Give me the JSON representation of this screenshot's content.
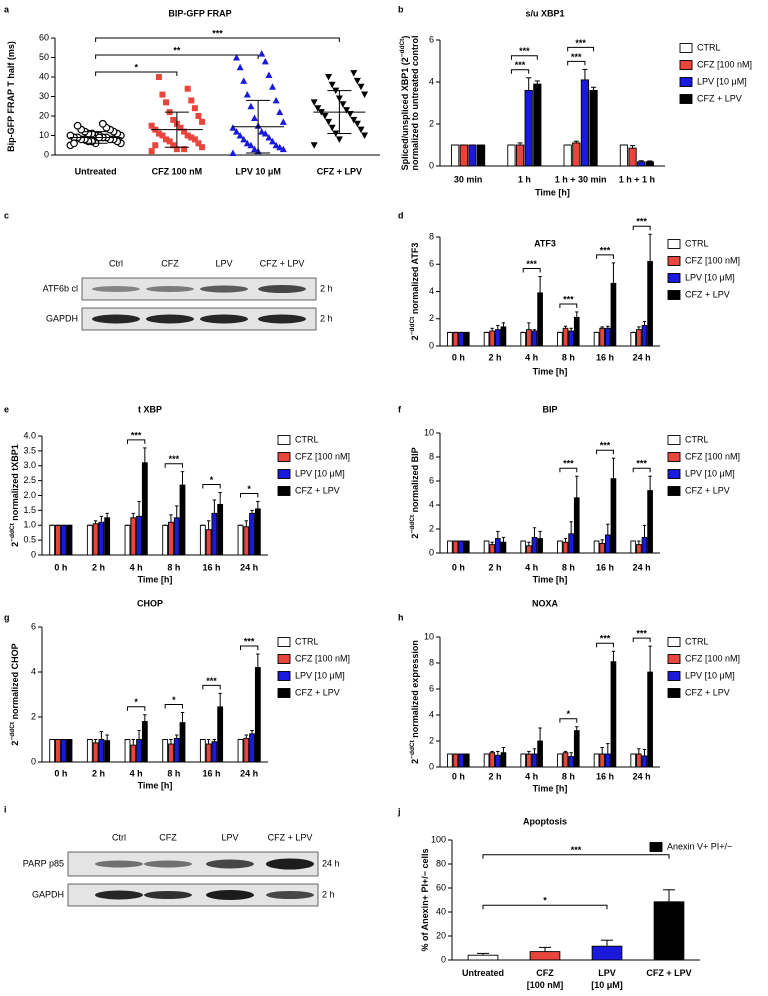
{
  "chart_data": [
    {
      "panel": "a",
      "type": "dotplot",
      "title": "BIP-GFP FRAP",
      "ylabel": [
        [
          "Bip-GFP FRAP T half (ms)"
        ]
      ],
      "categories": [
        "Untreated",
        "CFZ 100 nM",
        "LPV 10 μM",
        "CFZ + LPV"
      ],
      "ylim": [
        0,
        60
      ],
      "yticks": [
        0,
        10,
        20,
        30,
        40,
        50,
        60
      ],
      "groups": [
        {
          "color": "#000000",
          "marker": "circle",
          "mean": 9,
          "sd": 3,
          "values": [
            5,
            6,
            6,
            7,
            7,
            7,
            8,
            8,
            8,
            8,
            9,
            9,
            9,
            9,
            10,
            10,
            10,
            10,
            11,
            11,
            11,
            12,
            12,
            13,
            13,
            14,
            15,
            16,
            6,
            9
          ]
        },
        {
          "color": "#e8453c",
          "marker": "square",
          "mean": 13,
          "sd": 9,
          "values": [
            2,
            3,
            4,
            5,
            6,
            7,
            8,
            8,
            9,
            10,
            10,
            11,
            12,
            13,
            14,
            15,
            16,
            17,
            18,
            20,
            22,
            24,
            27,
            28,
            31,
            34,
            40,
            3,
            5
          ]
        },
        {
          "color": "#1a1adc",
          "marker": "triangle",
          "mean": 14.5,
          "sd": 13.5,
          "values": [
            1,
            2,
            3,
            3,
            4,
            5,
            5,
            6,
            7,
            8,
            9,
            10,
            11,
            12,
            12,
            14,
            15,
            17,
            19,
            22,
            25,
            28,
            31,
            35,
            38,
            41,
            45,
            48,
            50,
            52
          ]
        },
        {
          "color": "#000000",
          "marker": "triangle-down",
          "mean": 22,
          "sd": 11,
          "values": [
            5,
            8,
            10,
            11,
            13,
            14,
            16,
            17,
            18,
            20,
            21,
            22,
            23,
            24,
            26,
            27,
            29,
            31,
            33,
            35,
            36,
            38,
            40,
            42
          ]
        }
      ],
      "significance": [
        {
          "from": 0,
          "to": 1,
          "label": "*"
        },
        {
          "from": 0,
          "to": 2,
          "label": "**"
        },
        {
          "from": 0,
          "to": 3,
          "label": "***"
        }
      ]
    },
    {
      "panel": "b",
      "type": "bar",
      "title": "s/u XBP1",
      "xlabel": "Time [h]",
      "ylabel": [
        [
          "Spliced/unspliced XBP1 (2",
          "−ddCt",
          ")"
        ],
        [
          "normalized to untreated control"
        ]
      ],
      "categories": [
        "30 min",
        "1 h",
        "1 h + 30 min",
        "1 h + 1 h"
      ],
      "ylim": [
        0,
        6
      ],
      "yticks": [
        0,
        2,
        4,
        6
      ],
      "series": [
        {
          "name": "CTRL",
          "color": "#ffffff",
          "values": [
            1,
            1,
            1,
            1
          ],
          "errors": [
            0,
            0,
            0,
            0
          ]
        },
        {
          "name": "CFZ [100 nM]",
          "color": "#e8453c",
          "values": [
            1,
            1,
            1.1,
            0.85
          ],
          "errors": [
            0,
            0.1,
            0.08,
            0.12
          ]
        },
        {
          "name": "LPV [10 μM]",
          "color": "#1a1adc",
          "values": [
            1,
            3.6,
            4.1,
            0.2
          ],
          "errors": [
            0,
            0.6,
            0.5,
            0.05
          ]
        },
        {
          "name": "CFZ + LPV",
          "color": "#000000",
          "values": [
            1,
            3.9,
            3.6,
            0.2
          ],
          "errors": [
            0,
            0.15,
            0.15,
            0.04
          ]
        }
      ],
      "significance": [
        {
          "category": 1,
          "from": 0,
          "to": 2,
          "label": "***"
        },
        {
          "category": 1,
          "from": 0,
          "to": 3,
          "label": "***"
        },
        {
          "category": 2,
          "from": 0,
          "to": 2,
          "label": "***"
        },
        {
          "category": 2,
          "from": 0,
          "to": 3,
          "label": "***"
        }
      ]
    },
    {
      "panel": "d",
      "type": "bar",
      "title": "ATF3",
      "xlabel": "Time [h]",
      "ylabel": [
        [
          "2",
          "−ddCt",
          " normalized ATF3"
        ]
      ],
      "categories": [
        "0 h",
        "2 h",
        "4 h",
        "8 h",
        "16 h",
        "24 h"
      ],
      "ylim": [
        0,
        8
      ],
      "yticks": [
        0,
        2,
        4,
        6,
        8
      ],
      "series": [
        {
          "name": "CTRL",
          "color": "#ffffff",
          "values": [
            1,
            1,
            1,
            1,
            1,
            1
          ],
          "errors": [
            0,
            0,
            0,
            0,
            0,
            0
          ]
        },
        {
          "name": "CFZ [100 nM]",
          "color": "#e8453c",
          "values": [
            1,
            1.1,
            1.2,
            1.3,
            1.3,
            1.2
          ],
          "errors": [
            0,
            0.2,
            0.5,
            0.15,
            0.1,
            0.2
          ]
        },
        {
          "name": "LPV [10 μM]",
          "color": "#1a1adc",
          "values": [
            1,
            1.2,
            1.1,
            1.1,
            1.3,
            1.5
          ],
          "errors": [
            0,
            0.3,
            0.1,
            0.2,
            0.15,
            0.3
          ]
        },
        {
          "name": "CFZ + LPV",
          "color": "#000000",
          "values": [
            1,
            1.4,
            3.9,
            2.1,
            4.6,
            6.2
          ],
          "errors": [
            0,
            0.3,
            1.2,
            0.4,
            1.5,
            2.0
          ]
        }
      ],
      "significance": [
        {
          "category": 2,
          "from": 0,
          "to": 3,
          "label": "***"
        },
        {
          "category": 3,
          "from": 0,
          "to": 3,
          "label": "***"
        },
        {
          "category": 4,
          "from": 0,
          "to": 3,
          "label": "***"
        },
        {
          "category": 5,
          "from": 0,
          "to": 3,
          "label": "***"
        }
      ]
    },
    {
      "panel": "e",
      "type": "bar",
      "title": "t XBP",
      "xlabel": "Time [h]",
      "ylabel": [
        [
          "2",
          "−ddCt",
          " normalized tXBP1"
        ]
      ],
      "categories": [
        "0 h",
        "2 h",
        "4 h",
        "8 h",
        "16 h",
        "24 h"
      ],
      "ylim": [
        0,
        4
      ],
      "yticks": [
        0,
        0.5,
        {
          "value": 1,
          "label": "1.0"
        },
        1.5,
        {
          "value": 2,
          "label": "2.0"
        },
        2.5,
        {
          "value": 3,
          "label": "3.0"
        },
        3.5,
        {
          "value": 4,
          "label": "4.0"
        }
      ],
      "series": [
        {
          "name": "CTRL",
          "color": "#ffffff",
          "values": [
            1,
            1,
            1,
            1,
            1,
            1
          ],
          "errors": [
            0,
            0,
            0,
            0,
            0,
            0
          ]
        },
        {
          "name": "CFZ [100 nM]",
          "color": "#e8453c",
          "values": [
            1,
            1.05,
            1.25,
            1.1,
            0.85,
            0.95
          ],
          "errors": [
            0,
            0.1,
            0.15,
            0.25,
            0.3,
            0.2
          ]
        },
        {
          "name": "LPV [10 μM]",
          "color": "#1a1adc",
          "values": [
            1,
            1.1,
            1.3,
            1.25,
            1.4,
            1.4
          ],
          "errors": [
            0,
            0.2,
            0.5,
            0.4,
            0.45,
            0.1
          ]
        },
        {
          "name": "CFZ + LPV",
          "color": "#000000",
          "values": [
            1,
            1.25,
            3.1,
            2.35,
            1.7,
            1.55
          ],
          "errors": [
            0,
            0.15,
            0.5,
            0.45,
            0.4,
            0.25
          ]
        }
      ],
      "significance": [
        {
          "category": 2,
          "from": 0,
          "to": 3,
          "label": "***"
        },
        {
          "category": 3,
          "from": 0,
          "to": 3,
          "label": "***"
        },
        {
          "category": 4,
          "from": 0,
          "to": 3,
          "label": "*"
        },
        {
          "category": 5,
          "from": 0,
          "to": 3,
          "label": "*"
        }
      ]
    },
    {
      "panel": "f",
      "type": "bar",
      "title": "BIP",
      "xlabel": "Time [h]",
      "ylabel": [
        [
          "2",
          "−ddCt",
          " normalized BIP"
        ]
      ],
      "categories": [
        "0 h",
        "2 h",
        "4 h",
        "8 h",
        "16 h",
        "24 h"
      ],
      "ylim": [
        0,
        10
      ],
      "yticks": [
        0,
        2,
        4,
        6,
        8,
        10
      ],
      "series": [
        {
          "name": "CTRL",
          "color": "#ffffff",
          "values": [
            1,
            1,
            1,
            1,
            1,
            1
          ],
          "errors": [
            0,
            0,
            0,
            0,
            0,
            0
          ]
        },
        {
          "name": "CFZ [100 nM]",
          "color": "#e8453c",
          "values": [
            1,
            0.7,
            0.6,
            0.9,
            0.8,
            0.7
          ],
          "errors": [
            0,
            0.2,
            0.3,
            0.3,
            0.3,
            0.3
          ]
        },
        {
          "name": "LPV [10 μM]",
          "color": "#1a1adc",
          "values": [
            1,
            1.2,
            1.3,
            1.6,
            1.5,
            1.3
          ],
          "errors": [
            0,
            0.6,
            0.8,
            1.0,
            0.9,
            1.0
          ]
        },
        {
          "name": "CFZ + LPV",
          "color": "#000000",
          "values": [
            1,
            0.9,
            1.2,
            4.6,
            6.2,
            5.2
          ],
          "errors": [
            0,
            0.4,
            0.6,
            1.8,
            1.7,
            1.2
          ]
        }
      ],
      "significance": [
        {
          "category": 3,
          "from": 0,
          "to": 3,
          "label": "***"
        },
        {
          "category": 4,
          "from": 0,
          "to": 3,
          "label": "***"
        },
        {
          "category": 5,
          "from": 0,
          "to": 3,
          "label": "***"
        }
      ]
    },
    {
      "panel": "g",
      "type": "bar",
      "title": "CHOP",
      "xlabel": "Time [h]",
      "ylabel": [
        [
          "2",
          "−ddCt",
          " normalized CHOP"
        ]
      ],
      "categories": [
        "0 h",
        "2 h",
        "4 h",
        "8 h",
        "16 h",
        "24 h"
      ],
      "ylim": [
        0,
        6
      ],
      "yticks": [
        0,
        2,
        4,
        6
      ],
      "series": [
        {
          "name": "CTRL",
          "color": "#ffffff",
          "values": [
            1,
            1,
            1,
            1,
            1,
            1
          ],
          "errors": [
            0,
            0,
            0,
            0,
            0,
            0
          ]
        },
        {
          "name": "CFZ [100 nM]",
          "color": "#e8453c",
          "values": [
            1,
            0.85,
            0.75,
            0.8,
            0.8,
            1.05
          ],
          "errors": [
            0,
            0.15,
            0.25,
            0.2,
            0.2,
            0.15
          ]
        },
        {
          "name": "LPV [10 μM]",
          "color": "#1a1adc",
          "values": [
            1,
            1.0,
            1.0,
            1.05,
            0.9,
            1.25
          ],
          "errors": [
            0,
            0.35,
            0.4,
            0.15,
            0.1,
            0.15
          ]
        },
        {
          "name": "CFZ + LPV",
          "color": "#000000",
          "values": [
            1,
            0.95,
            1.8,
            1.75,
            2.45,
            4.2
          ],
          "errors": [
            0,
            0.25,
            0.3,
            0.45,
            0.6,
            0.6
          ]
        }
      ],
      "significance": [
        {
          "category": 2,
          "from": 0,
          "to": 3,
          "label": "*"
        },
        {
          "category": 3,
          "from": 0,
          "to": 3,
          "label": "*"
        },
        {
          "category": 4,
          "from": 0,
          "to": 3,
          "label": "***"
        },
        {
          "category": 5,
          "from": 0,
          "to": 3,
          "label": "***"
        }
      ]
    },
    {
      "panel": "h",
      "type": "bar",
      "title": "NOXA",
      "xlabel": "Time [h]",
      "ylabel": [
        [
          "2",
          "−ddCt",
          " normalized expression"
        ]
      ],
      "categories": [
        "0 h",
        "2 h",
        "4 h",
        "8 h",
        "16 h",
        "24 h"
      ],
      "ylim": [
        0,
        10
      ],
      "yticks": [
        0,
        2,
        4,
        6,
        8,
        10
      ],
      "series": [
        {
          "name": "CTRL",
          "color": "#ffffff",
          "values": [
            1,
            1,
            1,
            1,
            1,
            1
          ],
          "errors": [
            0,
            0,
            0,
            0,
            0,
            0
          ]
        },
        {
          "name": "CFZ [100 nM]",
          "color": "#e8453c",
          "values": [
            1,
            1.1,
            1.0,
            1.1,
            1.0,
            1.0
          ],
          "errors": [
            0,
            0.1,
            0.2,
            0.1,
            0.5,
            0.4
          ]
        },
        {
          "name": "LPV [10 μM]",
          "color": "#1a1adc",
          "values": [
            1,
            0.9,
            1.0,
            0.8,
            1.0,
            0.85
          ],
          "errors": [
            0,
            0.3,
            0.4,
            0.3,
            0.8,
            0.5
          ]
        },
        {
          "name": "CFZ + LPV",
          "color": "#000000",
          "values": [
            1,
            1.1,
            2.0,
            2.8,
            8.1,
            7.3
          ],
          "errors": [
            0,
            0.4,
            1.0,
            0.3,
            0.8,
            2.0
          ]
        }
      ],
      "significance": [
        {
          "category": 3,
          "from": 0,
          "to": 3,
          "label": "*"
        },
        {
          "category": 4,
          "from": 0,
          "to": 3,
          "label": "***"
        },
        {
          "category": 5,
          "from": 0,
          "to": 3,
          "label": "***"
        }
      ]
    },
    {
      "panel": "j",
      "type": "bar",
      "title": "Apoptosis",
      "ylabel": [
        [
          "% of Anexin+ PI+/− cells"
        ]
      ],
      "categories": [
        [
          "Untreated"
        ],
        [
          "CFZ",
          "[100 nM]"
        ],
        [
          "LPV",
          "[10 μM]"
        ],
        [
          "CFZ + LPV"
        ]
      ],
      "ylim": [
        0,
        100
      ],
      "yticks": [
        0,
        20,
        40,
        60,
        80,
        100
      ],
      "bar_colors": [
        "#ffffff",
        "#e8453c",
        "#1a1adc",
        "#000000"
      ],
      "series": [
        {
          "name": "Anexin V+ PI+/−",
          "color": "#000000",
          "values": [
            4,
            7,
            11.5,
            48.5
          ],
          "errors": [
            1.5,
            3.5,
            5,
            10
          ]
        }
      ],
      "significance": [
        {
          "from": 0,
          "to": 2,
          "label": "*"
        },
        {
          "from": 0,
          "to": 3,
          "label": "***"
        }
      ]
    }
  ],
  "blots": [
    {
      "panel": "c",
      "lanes": [
        "Ctrl",
        "CFZ",
        "LPV",
        "CFZ + LPV"
      ],
      "rows": [
        {
          "label": "ATF6b cl",
          "time": "2 h"
        },
        {
          "label": "GAPDH",
          "time": "2 h"
        }
      ]
    },
    {
      "panel": "i",
      "lanes": [
        "Ctrl",
        "CFZ",
        "LPV",
        "CFZ + LPV"
      ],
      "rows": [
        {
          "label": "PARP p85",
          "time": "24 h"
        },
        {
          "label": "GAPDH",
          "time": "2 h"
        }
      ]
    }
  ]
}
